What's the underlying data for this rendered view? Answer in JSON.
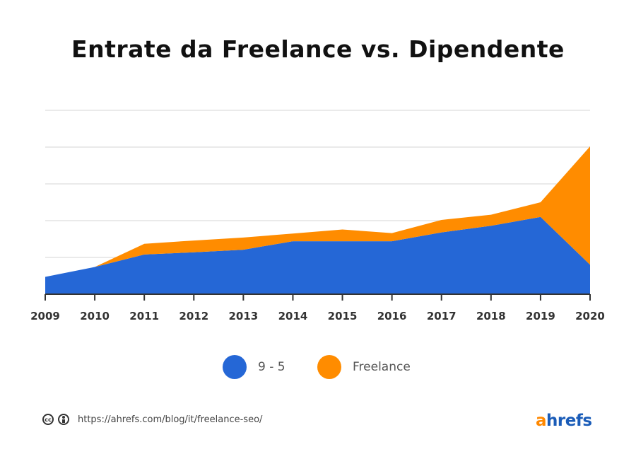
{
  "chart_data": {
    "type": "area",
    "stacked": true,
    "title": "Entrate da Freelance vs. Dipendente",
    "x": [
      "2009",
      "2010",
      "2011",
      "2012",
      "2013",
      "2014",
      "2015",
      "2016",
      "2017",
      "2018",
      "2019",
      "2020"
    ],
    "ylim": [
      0,
      5
    ],
    "grid": true,
    "y_ticks_labeled": false,
    "series": [
      {
        "name": "9 - 5",
        "color": "#2567d6",
        "values": [
          0.47,
          0.74,
          1.08,
          1.14,
          1.21,
          1.44,
          1.44,
          1.44,
          1.68,
          1.86,
          2.1,
          0.8
        ]
      },
      {
        "name": "Freelance",
        "color": "#ff8c00",
        "values": [
          0,
          0,
          0.29,
          0.32,
          0.33,
          0.21,
          0.32,
          0.22,
          0.34,
          0.3,
          0.4,
          3.22
        ]
      }
    ],
    "legend_position": "bottom"
  },
  "legend": [
    {
      "label": "9 - 5",
      "color": "#2567d6"
    },
    {
      "label": "Freelance",
      "color": "#ff8c00"
    }
  ],
  "footer": {
    "license_icons": [
      "cc-icon",
      "by-icon"
    ],
    "cc_text": "cc",
    "url": "https://ahrefs.com/blog/it/freelance-seo/"
  },
  "logo": {
    "accent": "a",
    "rest": "hrefs"
  }
}
